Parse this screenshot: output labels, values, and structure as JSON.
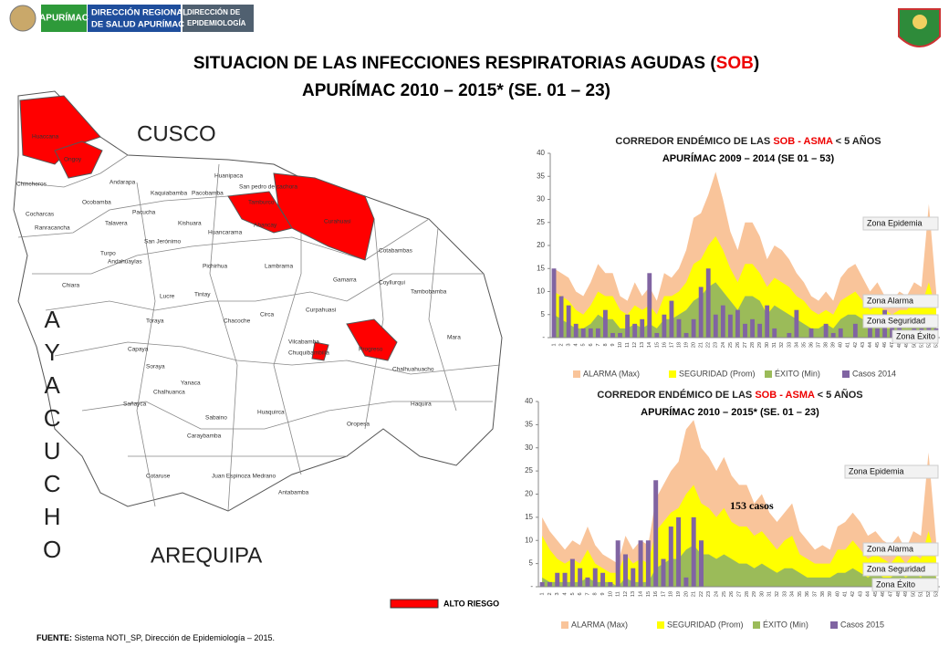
{
  "header": {
    "logo_text": "APURÍMAC",
    "org_line1": "DIRECCIÓN REGIONAL",
    "org_line2": "DE SALUD APURÍMAC",
    "dept_line1": "DIRECCIÓN DE",
    "dept_line2": "EPIDEMIOLOGÍA",
    "title_parts": [
      "SITUACION DE LAS INFECCIONES RESPIRATORIAS AGUDAS (",
      "SOB",
      ")"
    ],
    "title_line2": "APURÍMAC 2010 – 2015* (SE. 01 – 23)"
  },
  "map": {
    "neighbors": [
      "CUSCO",
      "AREQUIPA",
      "AYACUCHO"
    ],
    "districts": [
      "Huaccana",
      "Ongoy",
      "Chincheros",
      "Andarapa",
      "Kaquiabamba",
      "Pacobamba",
      "Huanipaca",
      "San pedro de cachora",
      "Tamburco",
      "Abancay",
      "Curahuasi",
      "Ocobamba",
      "Cocharcas",
      "Ranracancha",
      "Talavera",
      "Pacucha",
      "Kishuara",
      "Huancarama",
      "San Jerónimo",
      "Turpo",
      "Andahuaylas",
      "Chiara",
      "Pichirhua",
      "Lambrama",
      "Gamarra",
      "Cotabambas",
      "Tambobamba",
      "Circa",
      "Curpahuasi",
      "Coyllurqui",
      "Chacoche",
      "Tintay",
      "Lucre",
      "Vilcabamba",
      "Progreso",
      "Mara",
      "Chuquibambilla",
      "Chalhuahuacho",
      "Huaquirca",
      "Haquira",
      "Oropesa",
      "Sabaino",
      "Antabamba",
      "Cotaruse",
      "Juan Espinoza Medrano",
      "Caraybamba",
      "Chalhuanca",
      "Sañayca",
      "Soraya",
      "Capaya",
      "Yanaca",
      "Toraya"
    ],
    "legend": "ALTO RIESGO"
  },
  "footer": {
    "label": "FUENTE:",
    "text": " Sistema NOTI_SP, Dirección de Epidemiología – 2015."
  },
  "chart_data": [
    {
      "type": "area",
      "title": [
        "CORREDOR  ENDÉMICO  DE LAS  ",
        "SOB - ASMA",
        " < 5 AÑOS"
      ],
      "subtitle": "APURÍMAC  2009 – 2014  (SE  01 – 53)",
      "categories": [
        "1",
        "2",
        "3",
        "4",
        "5",
        "6",
        "7",
        "8",
        "9",
        "10",
        "11",
        "12",
        "13",
        "14",
        "15",
        "16",
        "17",
        "18",
        "19",
        "20",
        "21",
        "22",
        "23",
        "24",
        "25",
        "26",
        "27",
        "28",
        "29",
        "30",
        "31",
        "32",
        "33",
        "34",
        "35",
        "36",
        "37",
        "38",
        "39",
        "40",
        "41",
        "42",
        "43",
        "44",
        "45",
        "46",
        "47",
        "48",
        "49",
        "50",
        "51",
        "52",
        "53"
      ],
      "ylim": [
        0,
        40
      ],
      "yticks": [
        {
          "value": 0,
          "label": "-"
        },
        5,
        10,
        15,
        20,
        25,
        30,
        35,
        40
      ],
      "series": [
        {
          "name": "ALARMA (Max)",
          "color": "#f9c49a",
          "kind": "area",
          "values": [
            15,
            14,
            13,
            10,
            9,
            12,
            16,
            14,
            14,
            9,
            8,
            12,
            9,
            11,
            8,
            14,
            13,
            15,
            19,
            26,
            27,
            31,
            36,
            30,
            23,
            19,
            25,
            25,
            22,
            17,
            20,
            19,
            17,
            14,
            12,
            9,
            8,
            10,
            8,
            13,
            15,
            16,
            13,
            10,
            12,
            9,
            8,
            10,
            9,
            12,
            11,
            29,
            10
          ]
        },
        {
          "name": "SEGURIDAD (Prom)",
          "color": "#ffff00",
          "kind": "area",
          "values": [
            10,
            9,
            8,
            6,
            5,
            7,
            10,
            9,
            9,
            6,
            5,
            7,
            6,
            7,
            5,
            9,
            9,
            10,
            12,
            16,
            17,
            20,
            22,
            19,
            15,
            12,
            16,
            16,
            14,
            11,
            13,
            12,
            11,
            9,
            8,
            6,
            5,
            6,
            5,
            8,
            9,
            10,
            8,
            6,
            7,
            6,
            5,
            6,
            6,
            8,
            7,
            12,
            6
          ]
        },
        {
          "name": "ÉXITO (Min)",
          "color": "#9bbb59",
          "kind": "area",
          "values": [
            5,
            4,
            3,
            2,
            2,
            3,
            5,
            4,
            4,
            2,
            2,
            3,
            2,
            3,
            2,
            4,
            4,
            5,
            6,
            8,
            9,
            11,
            12,
            10,
            8,
            6,
            9,
            9,
            8,
            5,
            7,
            6,
            5,
            4,
            3,
            2,
            2,
            3,
            2,
            4,
            5,
            5,
            4,
            2,
            3,
            2,
            2,
            3,
            2,
            3,
            3,
            5,
            2
          ]
        },
        {
          "name": "Casos 2014",
          "color": "#8064a2",
          "kind": "bar",
          "values": [
            15,
            9,
            7,
            3,
            2,
            2,
            2,
            6,
            1,
            1,
            5,
            3,
            4,
            14,
            1,
            5,
            8,
            4,
            1,
            4,
            11,
            15,
            5,
            7,
            5,
            6,
            3,
            4,
            3,
            7,
            2,
            0,
            1,
            6,
            0,
            2,
            0,
            3,
            1,
            2,
            0,
            3,
            0,
            3,
            2,
            6,
            3,
            3,
            0,
            2,
            2,
            3,
            2
          ]
        }
      ],
      "annotations": [
        "Zona Epidemia",
        "Zona Alarma",
        "Zona Seguridad",
        "Zona Éxito"
      ]
    },
    {
      "type": "area",
      "title": [
        "CORREDOR  ENDÉMICO  DE LAS ",
        "SOB - ASMA",
        " < 5 AÑOS"
      ],
      "subtitle": "APURÍMAC  2010 – 2015*  (SE. 01 – 23)",
      "categories": [
        "1",
        "2",
        "3",
        "4",
        "5",
        "6",
        "7",
        "8",
        "9",
        "10",
        "11",
        "12",
        "13",
        "14",
        "15",
        "16",
        "17",
        "18",
        "19",
        "20",
        "21",
        "22",
        "23",
        "24",
        "25",
        "26",
        "27",
        "28",
        "29",
        "30",
        "31",
        "32",
        "33",
        "34",
        "35",
        "36",
        "37",
        "38",
        "39",
        "40",
        "41",
        "42",
        "43",
        "44",
        "45",
        "46",
        "47",
        "48",
        "49",
        "50",
        "51",
        "52",
        "53"
      ],
      "ylim": [
        0,
        40
      ],
      "yticks": [
        {
          "value": 0,
          "label": "-"
        },
        5,
        10,
        15,
        20,
        25,
        30,
        35,
        40
      ],
      "series": [
        {
          "name": "ALARMA (Max)",
          "color": "#f9c49a",
          "kind": "area",
          "values": [
            15,
            12,
            10,
            8,
            10,
            9,
            13,
            9,
            7,
            6,
            5,
            11,
            8,
            10,
            9,
            19,
            22,
            25,
            27,
            34,
            36,
            30,
            28,
            25,
            28,
            24,
            22,
            22,
            18,
            20,
            16,
            14,
            16,
            18,
            12,
            10,
            8,
            9,
            8,
            13,
            14,
            16,
            14,
            11,
            12,
            10,
            9,
            11,
            8,
            12,
            11,
            29,
            10
          ]
        },
        {
          "name": "SEGURIDAD (Prom)",
          "color": "#ffff00",
          "kind": "area",
          "values": [
            11,
            8,
            6,
            5,
            6,
            5,
            8,
            5,
            4,
            3,
            3,
            7,
            5,
            6,
            5,
            12,
            14,
            16,
            17,
            20,
            22,
            18,
            17,
            15,
            17,
            14,
            13,
            13,
            11,
            12,
            10,
            8,
            10,
            11,
            7,
            6,
            5,
            5,
            5,
            8,
            8,
            10,
            8,
            6,
            7,
            6,
            5,
            7,
            5,
            7,
            6,
            12,
            6
          ]
        },
        {
          "name": "ÉXITO (Min)",
          "color": "#9bbb59",
          "kind": "area",
          "values": [
            2,
            1,
            1,
            1,
            1,
            1,
            2,
            1,
            1,
            1,
            0,
            2,
            1,
            1,
            1,
            4,
            5,
            6,
            6,
            8,
            9,
            7,
            7,
            6,
            7,
            6,
            5,
            5,
            4,
            5,
            4,
            3,
            4,
            4,
            3,
            2,
            2,
            2,
            2,
            3,
            3,
            4,
            3,
            2,
            3,
            2,
            2,
            3,
            2,
            3,
            2,
            5,
            2
          ]
        },
        {
          "name": "Casos 2015",
          "color": "#8064a2",
          "kind": "bar",
          "values": [
            1,
            1,
            3,
            3,
            6,
            4,
            2,
            4,
            3,
            1,
            10,
            7,
            4,
            10,
            10,
            23,
            6,
            13,
            15,
            2,
            15,
            10,
            0,
            null,
            null,
            null,
            null,
            null,
            null,
            null,
            null,
            null,
            null,
            null,
            null,
            null,
            null,
            null,
            null,
            null,
            null,
            null,
            null,
            null,
            null,
            null,
            null,
            null,
            null,
            null,
            null,
            null,
            null
          ]
        }
      ],
      "annotations": [
        "Zona Epidemia",
        "Zona Alarma",
        "Zona Seguridad",
        "Zona Éxito"
      ],
      "note": "153 casos"
    }
  ]
}
